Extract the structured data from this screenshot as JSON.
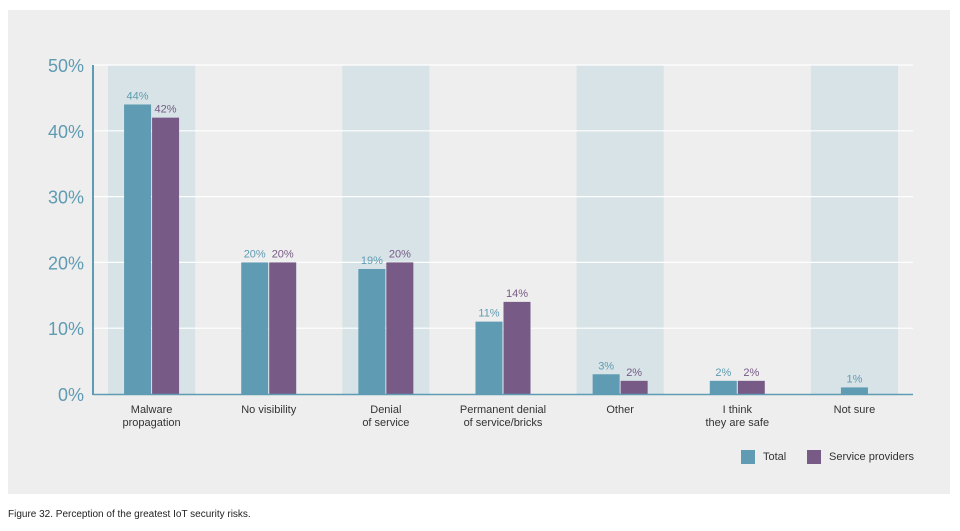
{
  "chart_data": {
    "type": "bar",
    "categories": [
      "Malware\npropagation",
      "No visibility",
      "Denial\nof service",
      "Permanent denial\nof service/bricks",
      "Other",
      "I think\nthey are safe",
      "Not sure"
    ],
    "series": [
      {
        "name": "Total",
        "values": [
          44,
          20,
          19,
          11,
          3,
          2,
          1
        ]
      },
      {
        "name": "Service providers",
        "values": [
          42,
          20,
          20,
          14,
          2,
          2,
          null
        ]
      }
    ],
    "value_labels": [
      [
        "44%",
        "20%",
        "19%",
        "11%",
        "3%",
        "2%",
        "1%"
      ],
      [
        "42%",
        "20%",
        "20%",
        "14%",
        "2%",
        "2%",
        ""
      ]
    ],
    "ylim": [
      0,
      50
    ],
    "yticks": [
      0,
      10,
      20,
      30,
      40,
      50
    ],
    "ytick_labels": [
      "0%",
      "10%",
      "20%",
      "30%",
      "40%",
      "50%"
    ],
    "grid": true,
    "legend_position": "bottom-right",
    "colors": {
      "Total": "#5f9bb2",
      "Service providers": "#775a86",
      "band": "#d7e3e6",
      "axis": "#5f9bb2"
    }
  },
  "legend": {
    "total": "Total",
    "service_providers": "Service providers"
  },
  "caption": "Figure 32. Perception of the greatest IoT security risks."
}
